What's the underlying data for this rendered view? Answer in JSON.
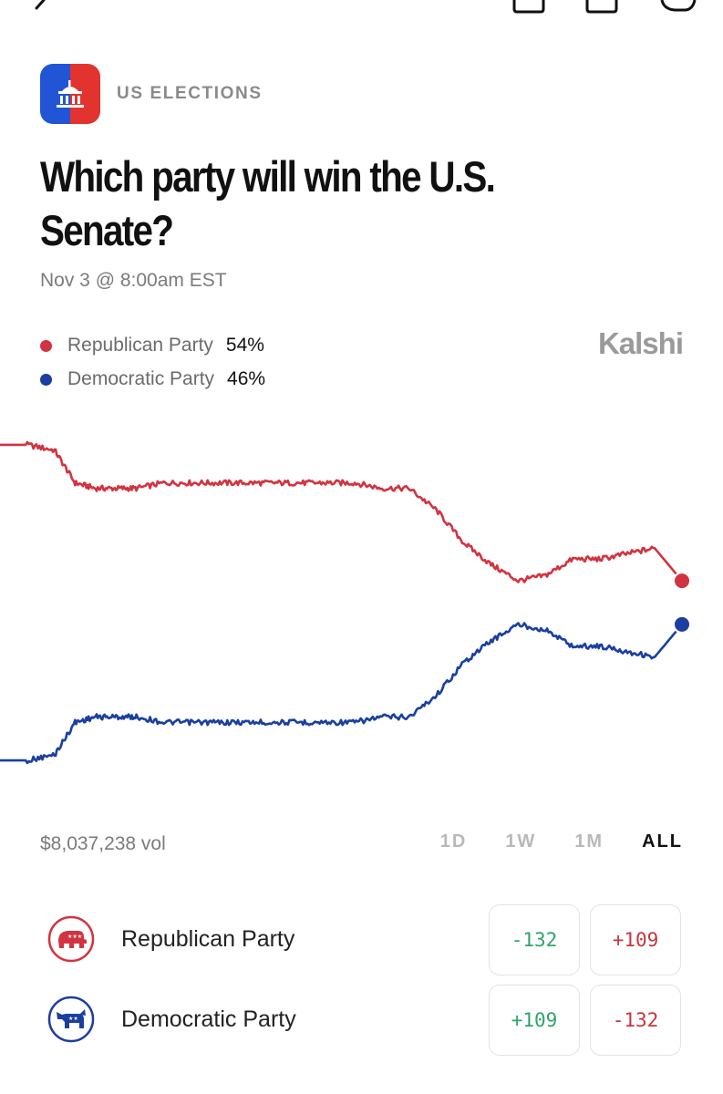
{
  "header": {
    "category": "US ELECTIONS",
    "title_line1": "Which party will win the U.S.",
    "title_line2": "Senate?",
    "date": "Nov 3 @ 8:00am EST",
    "brand": "Kalshi"
  },
  "icons": {
    "back": "back-arrow-icon",
    "share": "share-icon",
    "bookmark": "bookmark-icon",
    "comment": "comment-icon",
    "logo": "capitol-building-icon"
  },
  "colors": {
    "republican": "#d23340",
    "democratic": "#1a3fa0",
    "positive": "#2ea567",
    "negative": "#c8353a"
  },
  "legend": [
    {
      "name": "Republican Party",
      "pct": "54%"
    },
    {
      "name": "Democratic Party",
      "pct": "46%"
    }
  ],
  "chart_data": {
    "type": "line",
    "title": "",
    "xlabel": "",
    "ylabel": "",
    "ylim": [
      0,
      100
    ],
    "grid": false,
    "legend_position": "top-left",
    "x": [
      0,
      4,
      8,
      11,
      14,
      17,
      20,
      24,
      28,
      32,
      36,
      40,
      44,
      48,
      52,
      56,
      60,
      64,
      68,
      72,
      76,
      80,
      84,
      88,
      92,
      96,
      100
    ],
    "series": [
      {
        "name": "Republican Party",
        "values": [
          79,
          79,
          78,
          72,
          71,
          71,
          71,
          72,
          72,
          72,
          72,
          72,
          72,
          72,
          72,
          71,
          71,
          67,
          61,
          57,
          54,
          55,
          58,
          58,
          59,
          60,
          54
        ]
      },
      {
        "name": "Democratic Party",
        "values": [
          21,
          21,
          22,
          28,
          29,
          29,
          29,
          28,
          28,
          28,
          28,
          28,
          28,
          28,
          28,
          29,
          29,
          33,
          39,
          43,
          46,
          45,
          42,
          42,
          41,
          40,
          46
        ]
      }
    ],
    "end_labels": [
      "54%",
      "46%"
    ]
  },
  "footer": {
    "volume": "$8,037,238 vol",
    "ranges": [
      "1D",
      "1W",
      "1M",
      "ALL"
    ],
    "active_range": "ALL"
  },
  "outcomes": [
    {
      "name": "Republican Party",
      "icon": "republican-elephant-icon",
      "yes": "-132",
      "no": "+109"
    },
    {
      "name": "Democratic Party",
      "icon": "democratic-donkey-icon",
      "yes": "+109",
      "no": "-132"
    }
  ]
}
